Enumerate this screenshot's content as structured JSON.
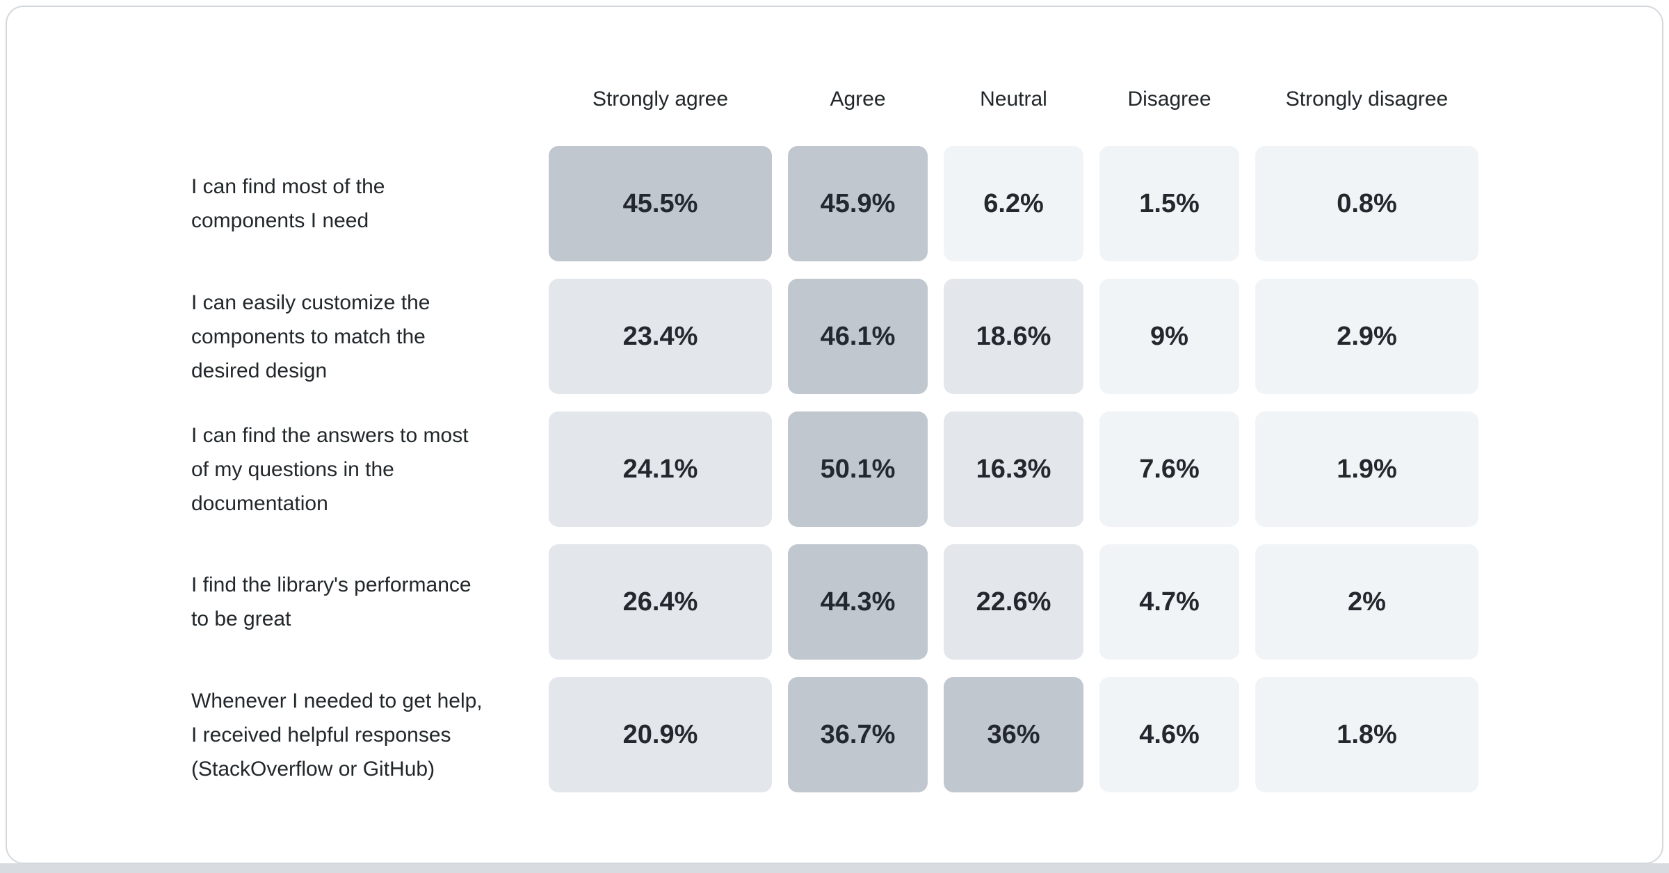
{
  "colors": {
    "card_background": "#ffffff",
    "card_border": "#d4d8dd",
    "bottom_band": "#d8dbe0",
    "text": "#21272a",
    "value_text": "#23282e",
    "heat_low": "#f1f4f7",
    "heat_mid": "#e3e7ec",
    "heat_high": "#c1c7cf"
  },
  "chart_data": {
    "type": "heatmap",
    "title": "",
    "legend_position": "none",
    "unit": "%",
    "columns": [
      "Strongly agree",
      "Agree",
      "Neutral",
      "Disagree",
      "Strongly disagree"
    ],
    "rows": [
      {
        "label": "I can find most of the components I need",
        "label_lines": "I can find most of the\ncomponents I need",
        "values": [
          45.5,
          45.9,
          6.2,
          1.5,
          0.8
        ],
        "display": [
          "45.5%",
          "45.9%",
          "6.2%",
          "1.5%",
          "0.8%"
        ]
      },
      {
        "label": "I can easily customize the components to match the desired design",
        "label_lines": "I can easily customize the\ncomponents to match the\ndesired design",
        "values": [
          23.4,
          46.1,
          18.6,
          9,
          2.9
        ],
        "display": [
          "23.4%",
          "46.1%",
          "18.6%",
          "9%",
          "2.9%"
        ]
      },
      {
        "label": "I can find the answers to most of my questions in the documentation",
        "label_lines": "I can find the answers to most\nof my questions in the\ndocumentation",
        "values": [
          24.1,
          50.1,
          16.3,
          7.6,
          1.9
        ],
        "display": [
          "24.1%",
          "50.1%",
          "16.3%",
          "7.6%",
          "1.9%"
        ]
      },
      {
        "label": "I find the library's performance to be great",
        "label_lines": "I find the library's performance\nto be great",
        "values": [
          26.4,
          44.3,
          22.6,
          4.7,
          2
        ],
        "display": [
          "26.4%",
          "44.3%",
          "22.6%",
          "4.7%",
          "2%"
        ]
      },
      {
        "label": "Whenever I needed to get help, I received helpful responses (StackOverflow or GitHub)",
        "label_lines": "Whenever I needed to get help,\nI received helpful responses\n(StackOverflow or GitHub)",
        "values": [
          20.9,
          36.7,
          36,
          4.6,
          1.8
        ],
        "display": [
          "20.9%",
          "36.7%",
          "36%",
          "4.6%",
          "1.8%"
        ]
      }
    ],
    "color_scale": {
      "thresholds": [
        10,
        30
      ],
      "colors": [
        "#f1f4f7",
        "#e3e7ec",
        "#c1c7cf"
      ]
    }
  }
}
